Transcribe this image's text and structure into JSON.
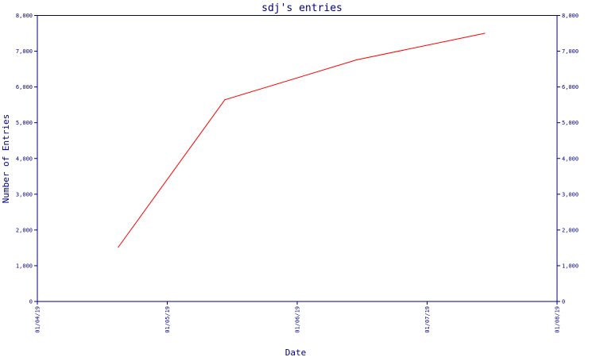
{
  "chart_data": {
    "type": "line",
    "title": "sdj's entries",
    "xlabel": "Date",
    "ylabel": "Number of Entries",
    "x_ticks": [
      "01/04/19",
      "01/05/19",
      "01/06/19",
      "01/07/19",
      "01/08/19"
    ],
    "y_ticks": [
      "0",
      "1,000",
      "2,000",
      "3,000",
      "4,000",
      "5,000",
      "6,000",
      "7,000",
      "8,000"
    ],
    "ylim": [
      0,
      8000
    ],
    "xlim": [
      "2019-04-01",
      "2019-08-01"
    ],
    "grid": false,
    "series": [
      {
        "color": "#ff0000",
        "points": [
          {
            "x": "2019-04-20",
            "y": 1520
          },
          {
            "x": "2019-05-15",
            "y": 5640
          },
          {
            "x": "2019-06-15",
            "y": 6760
          },
          {
            "x": "2019-07-15",
            "y": 7500
          }
        ]
      }
    ]
  },
  "colors": {
    "axis": "#000080",
    "text": "#000080",
    "line": "#ff0000",
    "background": "#ffffff"
  }
}
